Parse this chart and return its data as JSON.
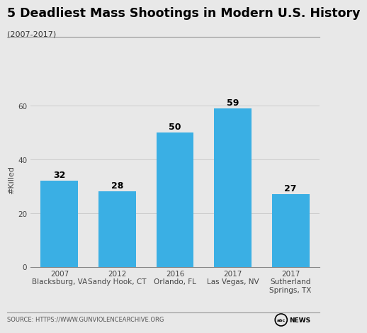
{
  "title": "5 Deadliest Mass Shootings in Modern U.S. History",
  "subtitle": "(2007-2017)",
  "categories_line1": [
    "2007",
    "2012",
    "2016",
    "2017",
    "2017"
  ],
  "categories_line2": [
    "Blacksburg, VA",
    "Sandy Hook, CT",
    "Orlando, FL",
    "Las Vegas, NV",
    "Sutherland\nSprings, TX"
  ],
  "values": [
    32,
    28,
    50,
    59,
    27
  ],
  "bar_color": "#3aafe4",
  "ylabel": "#Killed",
  "ylim": [
    0,
    65
  ],
  "yticks": [
    0,
    20,
    40,
    60
  ],
  "source_text": "SOURCE: HTTPS://WWW.GUNVIOLENCEARCHIVE.ORG",
  "bg_color": "#e8e8e8",
  "plot_bg_color": "#e8e8e8",
  "bar_label_fontsize": 9,
  "title_fontsize": 12.5,
  "subtitle_fontsize": 8,
  "ylabel_fontsize": 8,
  "tick_fontsize": 7.5,
  "source_fontsize": 6
}
